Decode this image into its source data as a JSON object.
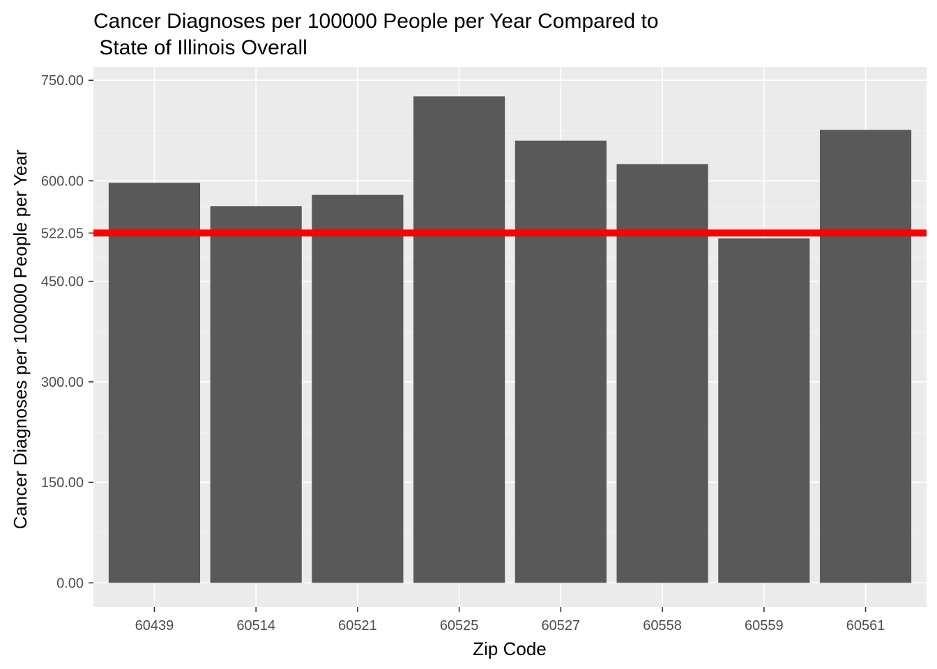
{
  "chart_data": {
    "type": "bar",
    "title": "Cancer Diagnoses per 100000 People per Year Compared to\n State of Illinois Overall",
    "title_lines": [
      "Cancer Diagnoses per 100000 People per Year Compared to",
      " State of Illinois Overall"
    ],
    "xlabel": "Zip Code",
    "ylabel": "Cancer Diagnoses per 100000 People per Year",
    "categories": [
      "60439",
      "60514",
      "60521",
      "60525",
      "60527",
      "60558",
      "60559",
      "60561"
    ],
    "values": [
      597,
      562,
      579,
      726,
      660,
      625,
      514,
      676
    ],
    "ylim": [
      -36,
      770
    ],
    "y_ticks": [
      0,
      150,
      300,
      450,
      522.05,
      600,
      750
    ],
    "y_tick_labels": [
      "0.00",
      "150.00",
      "300.00",
      "450.00",
      "522.05",
      "600.00",
      "750.00"
    ],
    "reference_line": {
      "value": 522.05,
      "color": "#ff0000"
    },
    "grid": true,
    "legend": "none",
    "colors": {
      "bar": "#595959",
      "panel_background": "#ebebeb",
      "grid_major": "#ffffff",
      "grid_minor": "#f5f5f5",
      "reference_line": "#ff0000",
      "tick_label": "#4d4d4d"
    }
  }
}
